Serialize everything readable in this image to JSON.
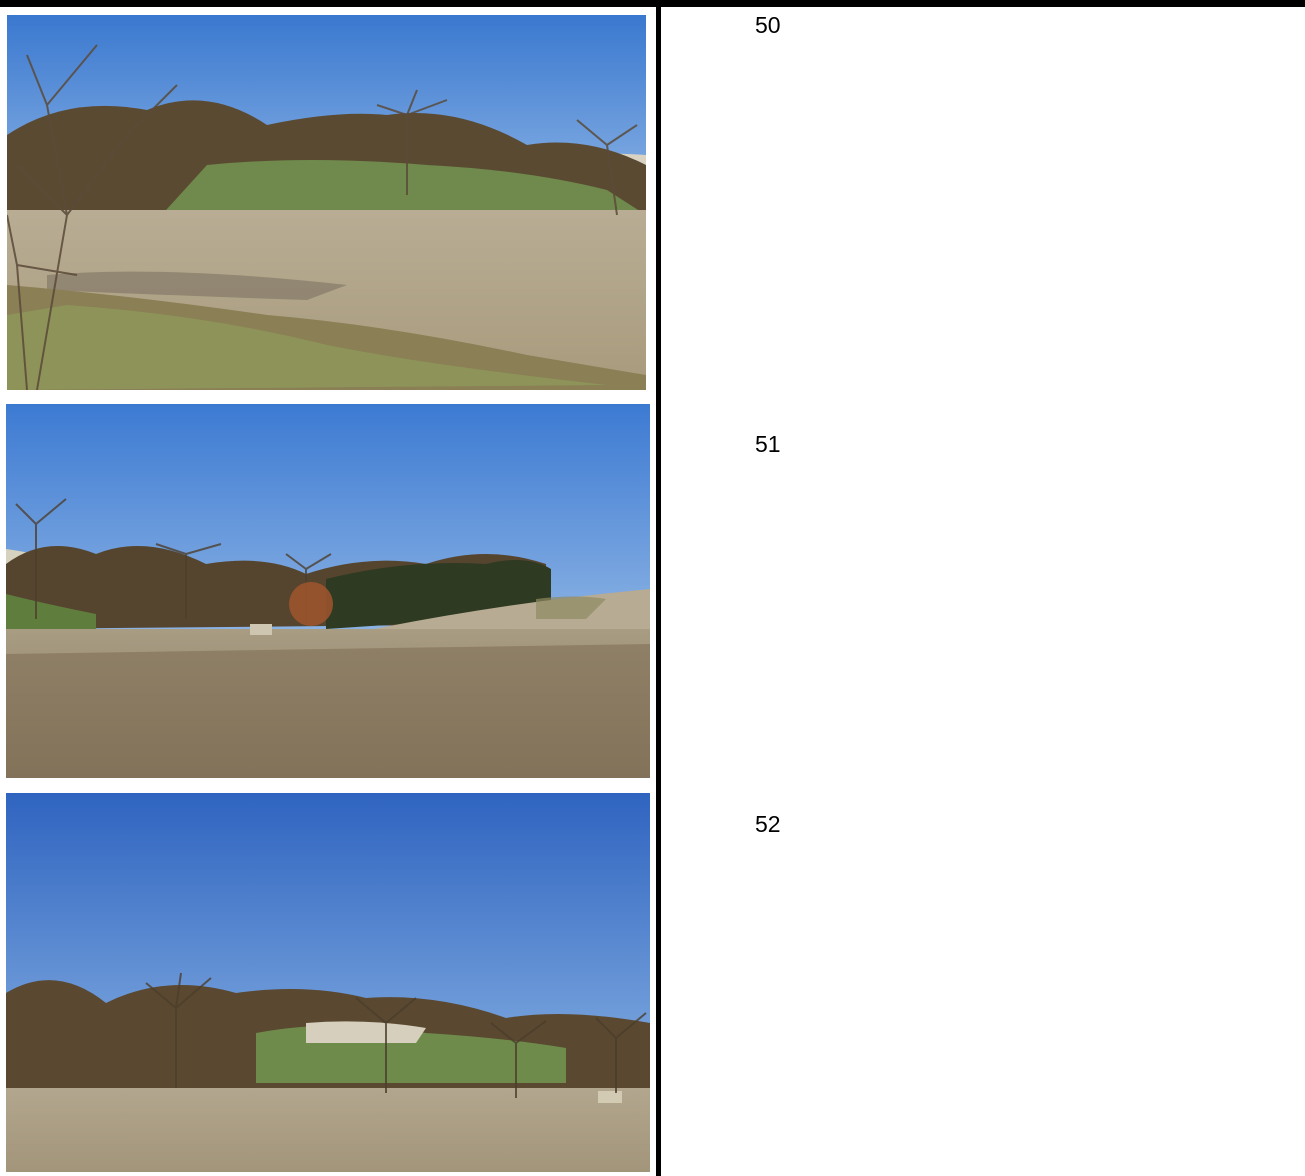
{
  "photo_log": {
    "entries": [
      {
        "number": "50",
        "image": "landscape-photo"
      },
      {
        "number": "51",
        "image": "landscape-photo"
      },
      {
        "number": "52",
        "image": "landscape-photo"
      }
    ]
  },
  "colors": {
    "sky": "#3f7fd0",
    "field": "#b3a78f",
    "trees": "#5e5038",
    "grass": "#7a8a55",
    "rule": "#000000"
  }
}
